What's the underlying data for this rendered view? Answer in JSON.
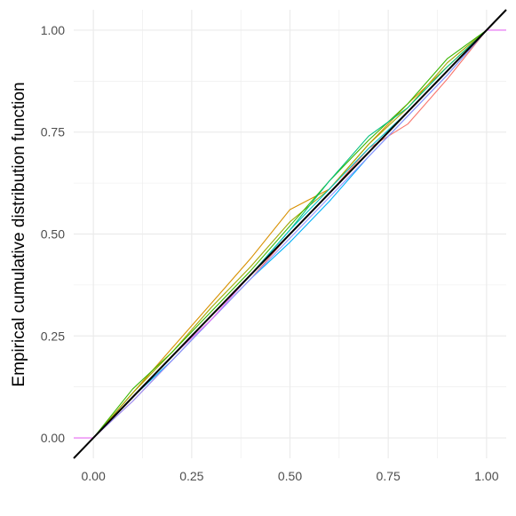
{
  "chart_data": {
    "type": "line",
    "title": "",
    "xlabel": "",
    "ylabel": "Empirical cumulative distribution function",
    "xlim": [
      -0.05,
      1.05
    ],
    "ylim": [
      -0.05,
      1.05
    ],
    "x_ticks": [
      "0.00",
      "0.25",
      "0.50",
      "0.75",
      "1.00"
    ],
    "y_ticks": [
      "0.00",
      "0.25",
      "0.50",
      "0.75",
      "1.00"
    ],
    "x_tick_values": [
      0,
      0.25,
      0.5,
      0.75,
      1
    ],
    "y_tick_values": [
      0,
      0.25,
      0.5,
      0.75,
      1
    ],
    "grid": true,
    "legend": "none",
    "reference_line": {
      "name": "y = x",
      "color": "#000000",
      "x": [
        -0.05,
        1.05
      ],
      "y": [
        -0.05,
        1.05
      ]
    },
    "series_colors": [
      "#F8766D",
      "#D89000",
      "#A3A500",
      "#39B600",
      "#00BF7D",
      "#00BFC4",
      "#00B0F6",
      "#9590FF",
      "#E76BF3",
      "#FF62BC"
    ],
    "series": [
      {
        "color": "#F8766D",
        "x": [
          0.0,
          0.1,
          0.2,
          0.3,
          0.4,
          0.5,
          0.6,
          0.7,
          0.8,
          0.9,
          1.0
        ],
        "y": [
          0.0,
          0.09,
          0.19,
          0.29,
          0.39,
          0.5,
          0.6,
          0.71,
          0.77,
          0.88,
          1.0
        ]
      },
      {
        "color": "#D89000",
        "x": [
          0.0,
          0.1,
          0.2,
          0.3,
          0.4,
          0.5,
          0.6,
          0.7,
          0.8,
          0.9,
          1.0
        ],
        "y": [
          0.0,
          0.11,
          0.22,
          0.33,
          0.44,
          0.56,
          0.61,
          0.72,
          0.82,
          0.91,
          1.0
        ]
      },
      {
        "color": "#A3A500",
        "x": [
          0.0,
          0.1,
          0.2,
          0.3,
          0.4,
          0.5,
          0.6,
          0.7,
          0.8,
          0.9,
          1.0
        ],
        "y": [
          0.0,
          0.11,
          0.21,
          0.32,
          0.42,
          0.53,
          0.61,
          0.72,
          0.81,
          0.92,
          1.0
        ]
      },
      {
        "color": "#39B600",
        "x": [
          0.0,
          0.1,
          0.2,
          0.3,
          0.4,
          0.5,
          0.6,
          0.7,
          0.8,
          0.9,
          1.0
        ],
        "y": [
          0.0,
          0.12,
          0.21,
          0.31,
          0.41,
          0.52,
          0.63,
          0.73,
          0.82,
          0.93,
          1.0
        ]
      },
      {
        "color": "#00BF7D",
        "x": [
          0.0,
          0.1,
          0.2,
          0.3,
          0.4,
          0.5,
          0.6,
          0.7,
          0.8,
          0.9,
          1.0
        ],
        "y": [
          0.0,
          0.1,
          0.2,
          0.3,
          0.4,
          0.51,
          0.63,
          0.74,
          0.81,
          0.91,
          1.0
        ]
      },
      {
        "color": "#00BFC4",
        "x": [
          0.0,
          0.1,
          0.2,
          0.3,
          0.4,
          0.5,
          0.6,
          0.7,
          0.8,
          0.9,
          1.0
        ],
        "y": [
          0.0,
          0.1,
          0.2,
          0.3,
          0.4,
          0.51,
          0.61,
          0.71,
          0.8,
          0.9,
          1.0
        ]
      },
      {
        "color": "#00B0F6",
        "x": [
          0.0,
          0.1,
          0.2,
          0.3,
          0.4,
          0.5,
          0.6,
          0.7,
          0.8,
          0.9,
          1.0
        ],
        "y": [
          0.0,
          0.1,
          0.19,
          0.29,
          0.39,
          0.48,
          0.58,
          0.69,
          0.79,
          0.89,
          1.0
        ]
      },
      {
        "color": "#9590FF",
        "x": [
          0.0,
          0.1,
          0.2,
          0.3,
          0.4,
          0.5,
          0.6,
          0.7,
          0.8,
          0.9,
          1.0
        ],
        "y": [
          0.0,
          0.09,
          0.19,
          0.29,
          0.39,
          0.49,
          0.59,
          0.69,
          0.79,
          0.89,
          1.0
        ]
      },
      {
        "color": "#E76BF3",
        "x": [
          -0.05,
          0.0,
          0.1,
          0.2,
          0.3,
          0.4,
          0.5,
          0.6,
          0.7,
          0.8,
          0.9,
          1.0,
          1.05
        ],
        "y": [
          0.0,
          0.0,
          0.1,
          0.2,
          0.29,
          0.4,
          0.5,
          0.6,
          0.7,
          0.8,
          0.9,
          1.0,
          1.0
        ]
      },
      {
        "color": "#FF62BC",
        "x": [
          0.0,
          0.1,
          0.2,
          0.3,
          0.4,
          0.5,
          0.6,
          0.7,
          0.8,
          0.9,
          1.0
        ],
        "y": [
          0.0,
          0.1,
          0.2,
          0.3,
          0.4,
          0.5,
          0.6,
          0.7,
          0.8,
          0.9,
          1.0
        ]
      }
    ]
  }
}
